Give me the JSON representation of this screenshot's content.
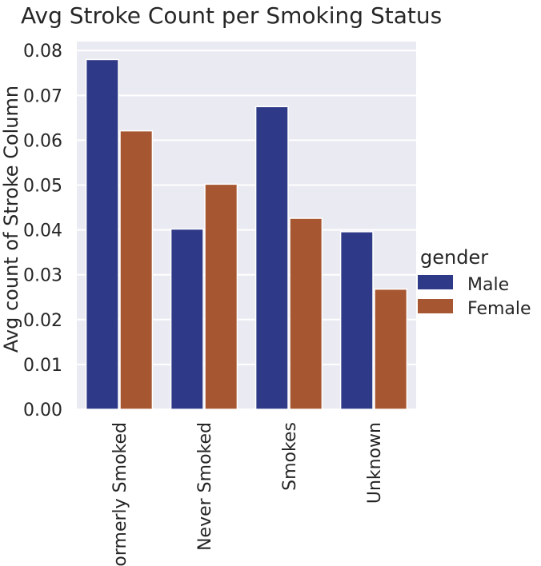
{
  "chart_data": {
    "type": "bar",
    "title": "Avg Stroke Count per Smoking Status",
    "xlabel": "",
    "ylabel": "Avg count of Stroke Column",
    "categories": [
      "Formerly Smoked",
      "Never Smoked",
      "Smokes",
      "Unknown"
    ],
    "series": [
      {
        "name": "Male",
        "values": [
          0.078,
          0.0402,
          0.0675,
          0.0396
        ]
      },
      {
        "name": "Female",
        "values": [
          0.0621,
          0.0502,
          0.0426,
          0.0268
        ]
      }
    ],
    "ylim": [
      0,
      0.082
    ],
    "yticks": [
      "0.00",
      "0.01",
      "0.02",
      "0.03",
      "0.04",
      "0.05",
      "0.06",
      "0.07",
      "0.08"
    ],
    "grid": true,
    "legend": {
      "title": "gender",
      "position": "right"
    },
    "colors": {
      "Male": "#2e3a87",
      "Female": "#a65630",
      "background": "#eaeaf2",
      "grid": "#ffffff"
    }
  }
}
